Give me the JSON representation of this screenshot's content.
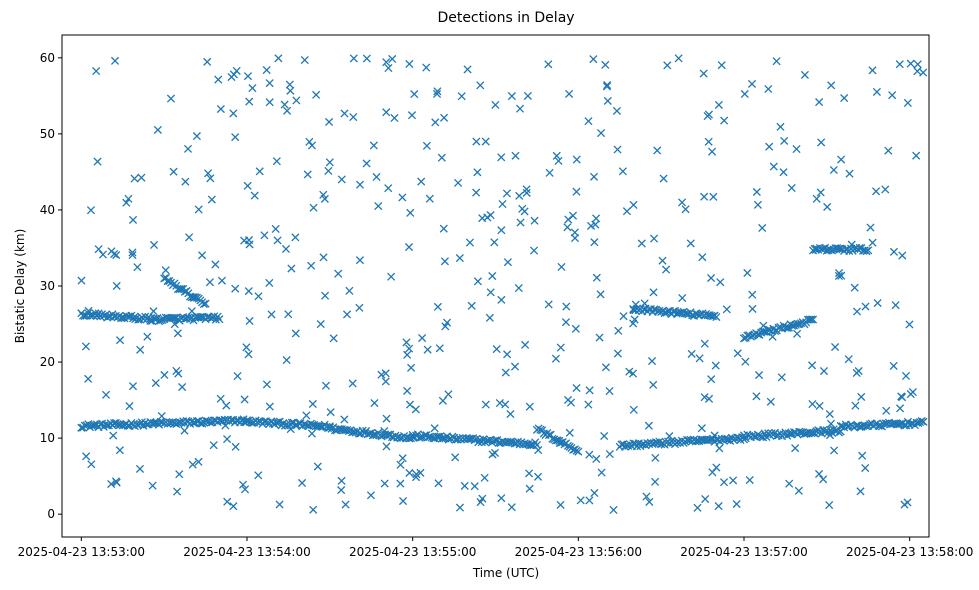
{
  "chart_data": {
    "type": "scatter",
    "title": "Detections in Delay",
    "xlabel": "Time (UTC)",
    "ylabel": "Bistatic Delay (km)",
    "marker": "x",
    "color": "#1f77b4",
    "grid": false,
    "x_range": [
      "2025-04-23 13:52:53",
      "2025-04-23 13:58:07"
    ],
    "ylim": [
      -3,
      63
    ],
    "x_ticks": [
      {
        "value": "2025-04-23 13:53:00",
        "label": "2025-04-23 13:53:00"
      },
      {
        "value": "2025-04-23 13:54:00",
        "label": "2025-04-23 13:54:00"
      },
      {
        "value": "2025-04-23 13:55:00",
        "label": "2025-04-23 13:55:00"
      },
      {
        "value": "2025-04-23 13:56:00",
        "label": "2025-04-23 13:56:00"
      },
      {
        "value": "2025-04-23 13:57:00",
        "label": "2025-04-23 13:57:00"
      },
      {
        "value": "2025-04-23 13:58:00",
        "label": "2025-04-23 13:58:00"
      }
    ],
    "y_ticks": [
      0,
      10,
      20,
      30,
      40,
      50,
      60
    ],
    "tracks": [
      {
        "x_start": "2025-04-23 13:53:00",
        "x_end": "2025-04-23 13:54:00",
        "y_start": 11.6,
        "y_end": 12.3
      },
      {
        "x_start": "2025-04-23 13:54:00",
        "x_end": "2025-04-23 13:54:30",
        "y_start": 12.2,
        "y_end": 11.5
      },
      {
        "x_start": "2025-04-23 13:54:30",
        "x_end": "2025-04-23 13:55:00",
        "y_start": 11.3,
        "y_end": 10.0
      },
      {
        "x_start": "2025-04-23 13:55:00",
        "x_end": "2025-04-23 13:55:45",
        "y_start": 10.3,
        "y_end": 9.2
      },
      {
        "x_start": "2025-04-23 13:55:45",
        "x_end": "2025-04-23 13:56:00",
        "y_start": 11.2,
        "y_end": 8.3
      },
      {
        "x_start": "2025-04-23 13:56:15",
        "x_end": "2025-04-23 13:57:00",
        "y_start": 9.0,
        "y_end": 10.0
      },
      {
        "x_start": "2025-04-23 13:57:00",
        "x_end": "2025-04-23 13:57:35",
        "y_start": 10.2,
        "y_end": 11.0
      },
      {
        "x_start": "2025-04-23 13:57:35",
        "x_end": "2025-04-23 13:58:05",
        "y_start": 11.5,
        "y_end": 12.0
      },
      {
        "x_start": "2025-04-23 13:53:00",
        "x_end": "2025-04-23 13:53:25",
        "y_start": 26.3,
        "y_end": 25.7
      },
      {
        "x_start": "2025-04-23 13:53:25",
        "x_end": "2025-04-23 13:53:50",
        "y_start": 25.6,
        "y_end": 25.8
      },
      {
        "x_start": "2025-04-23 13:53:30",
        "x_end": "2025-04-23 13:53:45",
        "y_start": 31.0,
        "y_end": 27.5
      },
      {
        "x_start": "2025-04-23 13:56:20",
        "x_end": "2025-04-23 13:56:50",
        "y_start": 27.0,
        "y_end": 26.0
      },
      {
        "x_start": "2025-04-23 13:57:00",
        "x_end": "2025-04-23 13:57:25",
        "y_start": 23.3,
        "y_end": 25.5
      },
      {
        "x_start": "2025-04-23 13:57:25",
        "x_end": "2025-04-23 13:57:45",
        "y_start": 34.8,
        "y_end": 34.8
      }
    ],
    "clutter": {
      "count": 520,
      "y_min": 0.5,
      "y_max": 60,
      "seed": 12345
    }
  }
}
